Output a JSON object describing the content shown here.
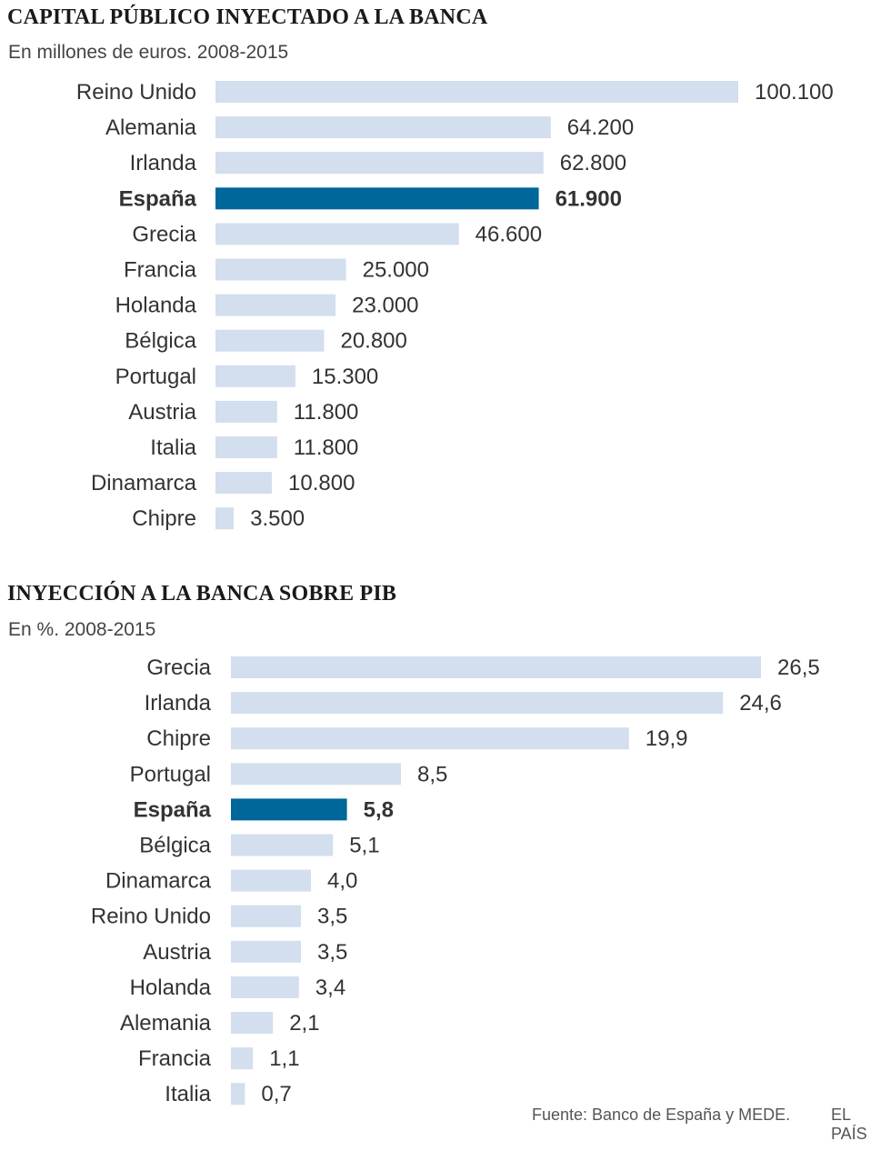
{
  "chart_data": [
    {
      "type": "bar",
      "orientation": "horizontal",
      "title": "CAPITAL PÚBLICO INYECTADO A LA BANCA",
      "subtitle": "En millones de euros. 2008-2015",
      "categories": [
        "Reino Unido",
        "Alemania",
        "Irlanda",
        "España",
        "Grecia",
        "Francia",
        "Holanda",
        "Bélgica",
        "Portugal",
        "Austria",
        "Italia",
        "Dinamarca",
        "Chipre"
      ],
      "values": [
        100100,
        64200,
        62800,
        61900,
        46600,
        25000,
        23000,
        20800,
        15300,
        11800,
        11800,
        10800,
        3500
      ],
      "labels": [
        "100.100",
        "64.200",
        "62.800",
        "61.900",
        "46.600",
        "25.000",
        "23.000",
        "20.800",
        "15.300",
        "11.800",
        "11.800",
        "10.800",
        "3.500"
      ],
      "highlight": "España",
      "xlim": [
        0,
        100100
      ],
      "xlabel": "",
      "ylabel": ""
    },
    {
      "type": "bar",
      "orientation": "horizontal",
      "title": "INYECCIÓN A LA BANCA SOBRE PIB",
      "subtitle": "En %. 2008-2015",
      "categories": [
        "Grecia",
        "Irlanda",
        "Chipre",
        "Portugal",
        "España",
        "Bélgica",
        "Dinamarca",
        "Reino Unido",
        "Austria",
        "Holanda",
        "Alemania",
        "Francia",
        "Italia"
      ],
      "values": [
        26.5,
        24.6,
        19.9,
        8.5,
        5.8,
        5.1,
        4.0,
        3.5,
        3.5,
        3.4,
        2.1,
        1.1,
        0.7
      ],
      "labels": [
        "26,5",
        "24,6",
        "19,9",
        "8,5",
        "5,8",
        "5,1",
        "4,0",
        "3,5",
        "3,5",
        "3,4",
        "2,1",
        "1,1",
        "0,7"
      ],
      "highlight": "España",
      "xlim": [
        0,
        26.5
      ],
      "xlabel": "",
      "ylabel": ""
    }
  ],
  "colors": {
    "bar": "#d3deee",
    "highlight": "#00679a",
    "text": "#333333",
    "highlight_text": "#333333"
  },
  "footer": {
    "source": "Fuente: Banco de España y MEDE.",
    "brand": "EL PAÍS"
  }
}
